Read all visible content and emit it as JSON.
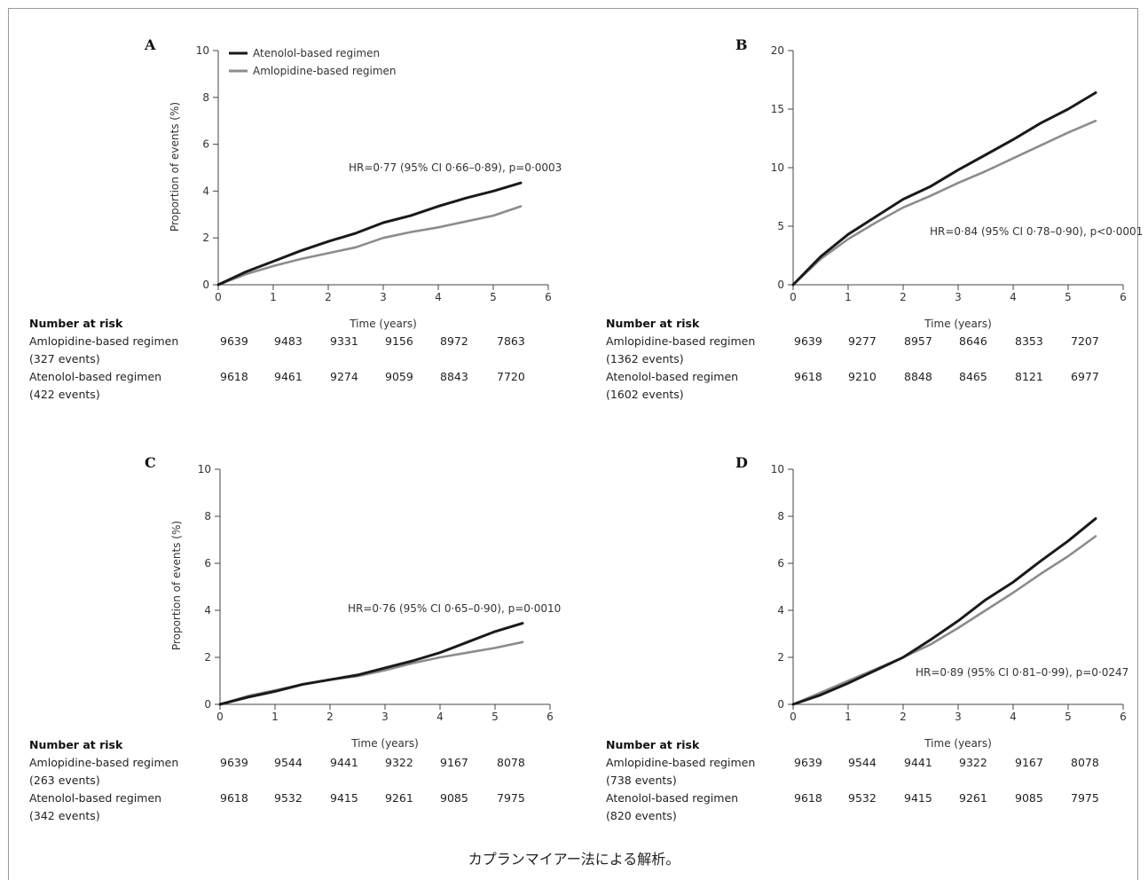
{
  "caption": "カプランマイアー法による解析。",
  "legend": {
    "atenolol_label": "Atenolol-based regimen",
    "amlodipine_label": "Amlopidine-based regimen"
  },
  "colors": {
    "atenolol": "#1a1a1a",
    "amlodipine": "#8c8c8c",
    "axis": "#444444"
  },
  "chart_data": [
    {
      "panel": "A",
      "type": "line",
      "ylabel": "Proportion of events (%)",
      "xlabel": "Time (years)",
      "xlim": [
        0,
        6
      ],
      "ylim": [
        0,
        10
      ],
      "xticks": [
        0,
        1,
        2,
        3,
        4,
        5,
        6
      ],
      "yticks": [
        0,
        2,
        4,
        6,
        8,
        10
      ],
      "legend_position": "top-left",
      "annotation": "HR=0·77 (95% CI 0·66–0·89), p=0·0003",
      "series": [
        {
          "name": "Atenolol-based regimen",
          "x": [
            0,
            0.5,
            1,
            1.5,
            2,
            2.5,
            3,
            3.5,
            4,
            4.5,
            5,
            5.5
          ],
          "y": [
            0,
            0.55,
            1.0,
            1.45,
            1.85,
            2.2,
            2.65,
            2.95,
            3.35,
            3.7,
            4.0,
            4.35
          ]
        },
        {
          "name": "Amlopidine-based regimen",
          "x": [
            0,
            0.5,
            1,
            1.5,
            2,
            2.5,
            3,
            3.5,
            4,
            4.5,
            5,
            5.5
          ],
          "y": [
            0,
            0.45,
            0.8,
            1.1,
            1.35,
            1.6,
            2.0,
            2.25,
            2.45,
            2.7,
            2.95,
            3.35
          ]
        }
      ],
      "risk": {
        "title": "Number at risk",
        "rows": [
          {
            "label1": "Amlopidine-based regimen",
            "label2": "(327 events)",
            "values": [
              "9639",
              "9483",
              "9331",
              "9156",
              "8972",
              "7863"
            ]
          },
          {
            "label1": "Atenolol-based regimen",
            "label2": "(422  events)",
            "values": [
              "9618",
              "9461",
              "9274",
              "9059",
              "8843",
              "7720"
            ]
          }
        ]
      }
    },
    {
      "panel": "B",
      "type": "line",
      "ylabel": "",
      "xlabel": "Time (years)",
      "xlim": [
        0,
        6
      ],
      "ylim": [
        0,
        20
      ],
      "xticks": [
        0,
        1,
        2,
        3,
        4,
        5,
        6
      ],
      "yticks": [
        0,
        5,
        10,
        15,
        20
      ],
      "annotation": "HR=0·84 (95% CI 0·78–0·90), p<0·0001",
      "series": [
        {
          "name": "Atenolol-based regimen",
          "x": [
            0,
            0.5,
            1,
            1.5,
            2,
            2.5,
            3,
            3.5,
            4,
            4.5,
            5,
            5.5
          ],
          "y": [
            0,
            2.4,
            4.3,
            5.8,
            7.3,
            8.4,
            9.8,
            11.1,
            12.4,
            13.8,
            15.0,
            16.4
          ]
        },
        {
          "name": "Amlopidine-based regimen",
          "x": [
            0,
            0.5,
            1,
            1.5,
            2,
            2.5,
            3,
            3.5,
            4,
            4.5,
            5,
            5.5
          ],
          "y": [
            0,
            2.2,
            3.9,
            5.3,
            6.6,
            7.6,
            8.7,
            9.7,
            10.8,
            11.9,
            13.0,
            14.0
          ]
        }
      ],
      "risk": {
        "title": "Number at risk",
        "rows": [
          {
            "label1": "Amlopidine-based regimen",
            "label2": "(1362 events)",
            "values": [
              "9639",
              "9277",
              "8957",
              "8646",
              "8353",
              "7207"
            ]
          },
          {
            "label1": "Atenolol-based regimen",
            "label2": "(1602  events)",
            "values": [
              "9618",
              "9210",
              "8848",
              "8465",
              "8121",
              "6977"
            ]
          }
        ]
      }
    },
    {
      "panel": "C",
      "type": "line",
      "ylabel": "Proportion of events (%)",
      "xlabel": "Time (years)",
      "xlim": [
        0,
        6
      ],
      "ylim": [
        0,
        10
      ],
      "xticks": [
        0,
        1,
        2,
        3,
        4,
        5,
        6
      ],
      "yticks": [
        0,
        2,
        4,
        6,
        8,
        10
      ],
      "annotation": "HR=0·76 (95% CI 0·65–0·90), p=0·0010",
      "series": [
        {
          "name": "Atenolol-based regimen",
          "x": [
            0,
            0.5,
            1,
            1.5,
            2,
            2.5,
            3,
            3.5,
            4,
            4.5,
            5,
            5.5
          ],
          "y": [
            0,
            0.3,
            0.55,
            0.85,
            1.05,
            1.25,
            1.55,
            1.85,
            2.2,
            2.65,
            3.1,
            3.45
          ]
        },
        {
          "name": "Amlopidine-based regimen",
          "x": [
            0,
            0.5,
            1,
            1.5,
            2,
            2.5,
            3,
            3.5,
            4,
            4.5,
            5,
            5.5
          ],
          "y": [
            0,
            0.35,
            0.6,
            0.85,
            1.05,
            1.2,
            1.45,
            1.75,
            2.0,
            2.2,
            2.4,
            2.65
          ]
        }
      ],
      "risk": {
        "title": "Number at risk",
        "rows": [
          {
            "label1": "Amlopidine-based regimen",
            "label2": "(263 events)",
            "values": [
              "9639",
              "9544",
              "9441",
              "9322",
              "9167",
              "8078"
            ]
          },
          {
            "label1": "Atenolol-based regimen",
            "label2": "(342  events)",
            "values": [
              "9618",
              "9532",
              "9415",
              "9261",
              "9085",
              "7975"
            ]
          }
        ]
      }
    },
    {
      "panel": "D",
      "type": "line",
      "ylabel": "",
      "xlabel": "Time (years)",
      "xlim": [
        0,
        6
      ],
      "ylim": [
        0,
        10
      ],
      "xticks": [
        0,
        1,
        2,
        3,
        4,
        5,
        6
      ],
      "yticks": [
        0,
        2,
        4,
        6,
        8,
        10
      ],
      "annotation": "HR=0·89 (95% CI 0·81–0·99), p=0·0247",
      "series": [
        {
          "name": "Atenolol-based regimen",
          "x": [
            0,
            0.5,
            1,
            1.5,
            2,
            2.5,
            3,
            3.5,
            4,
            4.5,
            5,
            5.5
          ],
          "y": [
            0,
            0.4,
            0.9,
            1.45,
            2.0,
            2.75,
            3.55,
            4.45,
            5.2,
            6.1,
            6.95,
            7.9
          ]
        },
        {
          "name": "Amlopidine-based regimen",
          "x": [
            0,
            0.5,
            1,
            1.5,
            2,
            2.5,
            3,
            3.5,
            4,
            4.5,
            5,
            5.5
          ],
          "y": [
            0,
            0.5,
            1.0,
            1.5,
            2.0,
            2.55,
            3.25,
            4.0,
            4.75,
            5.55,
            6.3,
            7.15
          ]
        }
      ],
      "risk": {
        "title": "Number at risk",
        "rows": [
          {
            "label1": "Amlopidine-based regimen",
            "label2": "(738 events)",
            "values": [
              "9639",
              "9544",
              "9441",
              "9322",
              "9167",
              "8078"
            ]
          },
          {
            "label1": "Atenolol-based regimen",
            "label2": "(820  events)",
            "values": [
              "9618",
              "9532",
              "9415",
              "9261",
              "9085",
              "7975"
            ]
          }
        ]
      }
    }
  ]
}
